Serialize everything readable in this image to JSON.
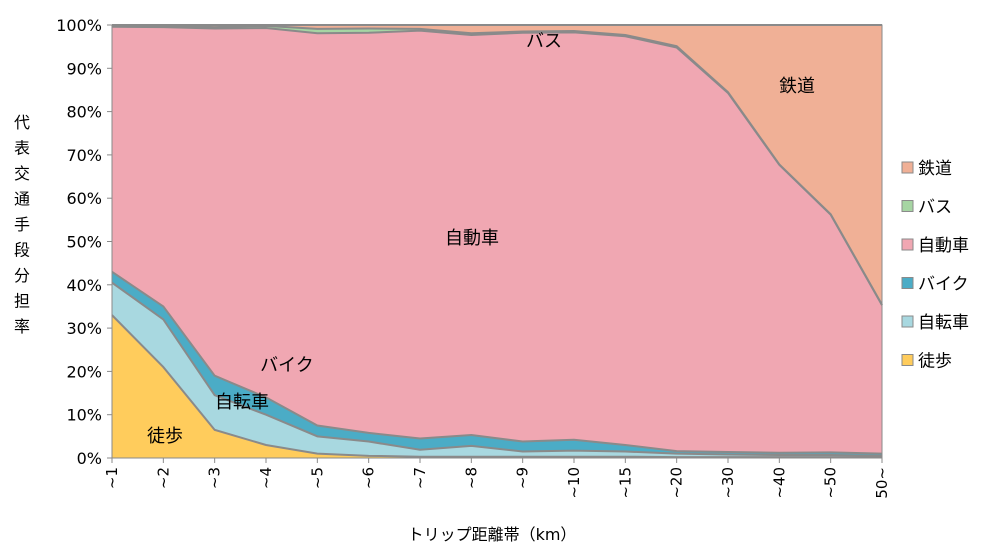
{
  "chart_data": {
    "type": "area",
    "stacked": true,
    "normalized": true,
    "xlabel": "トリップ距離帯（km）",
    "ylabel": "代表交通手段分担率",
    "ylim": [
      0,
      100
    ],
    "yticks": [
      "0%",
      "10%",
      "20%",
      "30%",
      "40%",
      "50%",
      "60%",
      "70%",
      "80%",
      "90%",
      "100%"
    ],
    "categories": [
      "~1",
      "~2",
      "~3",
      "~4",
      "~5",
      "~6",
      "~7",
      "~8",
      "~9",
      "~10",
      "~15",
      "~20",
      "~30",
      "~40",
      "~50",
      "50~"
    ],
    "grid": false,
    "legend_position": "right",
    "series": [
      {
        "name": "徒歩",
        "color": "#FFCC5C",
        "values": [
          33,
          21,
          6.5,
          3,
          1,
          0.5,
          0.3,
          0.3,
          0.3,
          0.3,
          0.3,
          0.2,
          0.2,
          0.2,
          0.2,
          0.2
        ]
      },
      {
        "name": "自転車",
        "color": "#A8D8E0",
        "values": [
          7.5,
          11,
          8,
          7,
          4,
          3.3,
          1.6,
          2.5,
          1.2,
          1.4,
          1.2,
          0.8,
          0.6,
          0.5,
          0.5,
          0.3
        ]
      },
      {
        "name": "バイク",
        "color": "#4BACC6",
        "values": [
          2.5,
          3,
          4.5,
          4,
          2.5,
          2,
          2.6,
          2.5,
          2.3,
          2.5,
          1.5,
          0.6,
          0.6,
          0.5,
          0.6,
          0.5
        ]
      },
      {
        "name": "自動車",
        "color": "#F0A7B2",
        "values": [
          56.6,
          64.5,
          80.2,
          85.3,
          90.6,
          92.4,
          94.2,
          92.4,
          94.4,
          94.1,
          94.4,
          93.2,
          82.9,
          66.5,
          54.9,
          34.3
        ]
      },
      {
        "name": "バス",
        "color": "#A6D5A3",
        "values": [
          0.3,
          0.3,
          0.3,
          0.5,
          1,
          1,
          0.4,
          0.4,
          0.3,
          0.3,
          0.3,
          0.3,
          0.2,
          0.1,
          0.1,
          0.1
        ]
      },
      {
        "name": "鉄道",
        "color": "#F0B096",
        "values": [
          0.1,
          0.2,
          0.5,
          0.2,
          0.9,
          0.8,
          0.9,
          1.9,
          1.5,
          1.4,
          2.3,
          4.9,
          15.5,
          32.2,
          43.7,
          64.6
        ]
      }
    ],
    "annotations": [
      "鉄道",
      "バス",
      "自動車",
      "バイク",
      "自転車",
      "徒歩"
    ]
  }
}
